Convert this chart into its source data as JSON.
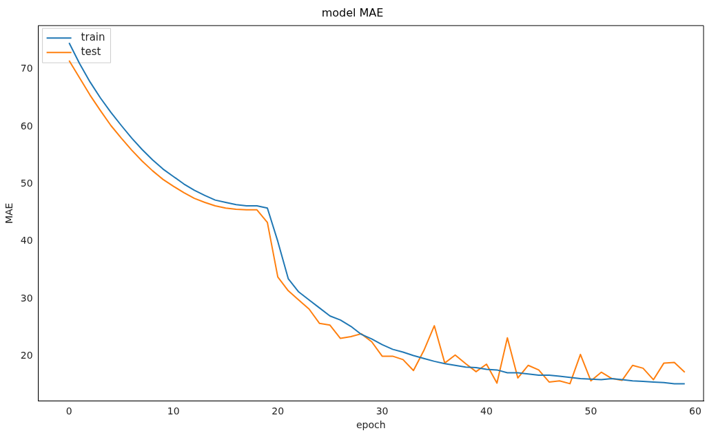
{
  "chart_data": {
    "type": "line",
    "title": "model MAE",
    "xlabel": "epoch",
    "ylabel": "MAE",
    "x": [
      0,
      1,
      2,
      3,
      4,
      5,
      6,
      7,
      8,
      9,
      10,
      11,
      12,
      13,
      14,
      15,
      16,
      17,
      18,
      19,
      20,
      21,
      22,
      23,
      24,
      25,
      26,
      27,
      28,
      29,
      30,
      31,
      32,
      33,
      34,
      35,
      36,
      37,
      38,
      39,
      40,
      41,
      42,
      43,
      44,
      45,
      46,
      47,
      48,
      49,
      50,
      51,
      52,
      53,
      54,
      55,
      56,
      57,
      58,
      59
    ],
    "series": [
      {
        "name": "train",
        "color": "#1f77b4",
        "values": [
          74.6,
          71,
          67.8,
          65,
          62.5,
          60.2,
          58,
          56,
          54.2,
          52.6,
          51.3,
          50,
          48.9,
          48,
          47.2,
          46.8,
          46.4,
          46.2,
          46.2,
          45.8,
          40,
          33.5,
          31.2,
          29.8,
          28.4,
          27,
          26.3,
          25.2,
          23.8,
          23,
          22,
          21.2,
          20.7,
          20.1,
          19.6,
          19.1,
          18.7,
          18.4,
          18.1,
          18,
          17.7,
          17.6,
          17.1,
          17.1,
          16.9,
          16.7,
          16.7,
          16.5,
          16.3,
          16.1,
          16,
          15.9,
          16.1,
          15.9,
          15.7,
          15.6,
          15.5,
          15.4,
          15.2,
          15.2
        ]
      },
      {
        "name": "test",
        "color": "#ff7f0e",
        "values": [
          71.5,
          68.5,
          65.5,
          62.8,
          60.2,
          58,
          55.9,
          54,
          52.3,
          50.8,
          49.6,
          48.5,
          47.5,
          46.8,
          46.2,
          45.8,
          45.6,
          45.5,
          45.5,
          43.3,
          33.8,
          31.4,
          29.8,
          28.2,
          25.7,
          25.4,
          23.1,
          23.4,
          23.9,
          22.5,
          20,
          20,
          19.4,
          17.5,
          21,
          25.3,
          18.8,
          20.2,
          18.7,
          17.3,
          18.6,
          15.3,
          23.2,
          16.2,
          18.4,
          17.6,
          15.5,
          15.7,
          15.2,
          20.3,
          15.7,
          17.2,
          16.1,
          15.8,
          18.4,
          17.9,
          15.9,
          18.8,
          18.9,
          17.2
        ]
      }
    ],
    "xlim": [
      -2.95,
      60.8
    ],
    "xticks": [
      0,
      10,
      20,
      30,
      40,
      50,
      60
    ],
    "ylim": [
      12.2,
      77.6
    ],
    "yticks": [
      20,
      30,
      40,
      50,
      60,
      70
    ],
    "legend": "top left",
    "grid": false,
    "marker": "none",
    "line_style": "solid"
  }
}
